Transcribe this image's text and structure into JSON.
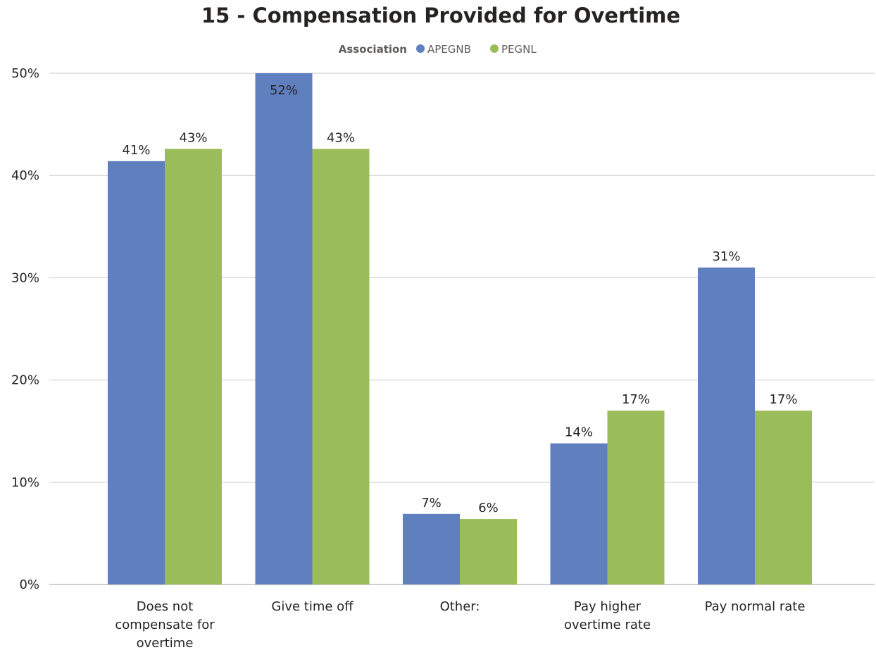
{
  "chart_data": {
    "type": "bar",
    "title": "15 - Compensation Provided for Overtime",
    "legend": {
      "title": "Association",
      "placement": "top-center"
    },
    "categories": [
      [
        "Does not",
        "compensate for",
        "overtime"
      ],
      [
        "Give time off"
      ],
      [
        "Other:"
      ],
      [
        "Pay higher",
        "overtime rate"
      ],
      [
        "Pay normal rate"
      ]
    ],
    "series": [
      {
        "name": "APEGNB",
        "color": "#5f7fbf",
        "values": [
          41.4,
          52,
          6.9,
          13.8,
          31
        ],
        "labels": [
          "41%",
          "52%",
          "7%",
          "14%",
          "31%"
        ]
      },
      {
        "name": "PEGNL",
        "color": "#9bbd59",
        "values": [
          42.6,
          42.6,
          6.4,
          17,
          17
        ],
        "labels": [
          "43%",
          "43%",
          "6%",
          "17%",
          "17%"
        ]
      }
    ],
    "ylim": [
      0,
      50
    ],
    "yticks": [
      0,
      10,
      20,
      30,
      40,
      50
    ],
    "ytick_labels": [
      "0%",
      "10%",
      "20%",
      "30%",
      "40%",
      "50%"
    ],
    "grid": true,
    "xlabel": "",
    "ylabel": ""
  }
}
